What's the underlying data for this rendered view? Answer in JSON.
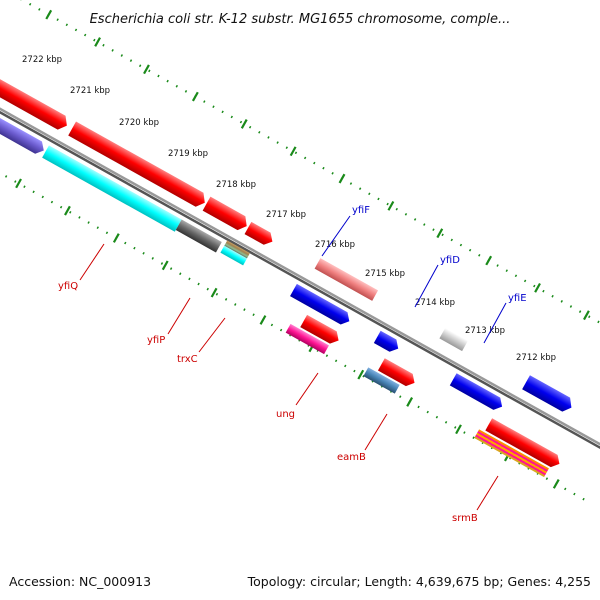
{
  "header": {
    "title": "Escherichia coli str. K-12 substr. MG1655 chromosome, comple..."
  },
  "footer": {
    "accession": "Accession: NC_000913",
    "topology": "Topology: circular; Length: 4,639,675 bp; Genes: 4,255"
  },
  "scale": {
    "ticks": [
      "2722 kbp",
      "2721 kbp",
      "2720 kbp",
      "2719 kbp",
      "2718 kbp",
      "2717 kbp",
      "2716 kbp",
      "2715 kbp",
      "2714 kbp",
      "2713 kbp",
      "2712 kbp"
    ]
  },
  "genes": {
    "top": [
      {
        "label": "yfiF"
      },
      {
        "label": "yfiD"
      },
      {
        "label": "yfiE"
      }
    ],
    "bottom": [
      {
        "label": "yfiQ"
      },
      {
        "label": "yfiP"
      },
      {
        "label": "trxC"
      },
      {
        "label": "ung"
      },
      {
        "label": "eamB"
      },
      {
        "label": "srmB"
      }
    ]
  },
  "colors": {
    "backbone": "#7a7a7a",
    "forward_cds": "#ff0000",
    "reverse_cds": "#0000ff",
    "top_label": "#0000cc",
    "bottom_label": "#cc0000",
    "ruler": "#1a8a1a"
  }
}
